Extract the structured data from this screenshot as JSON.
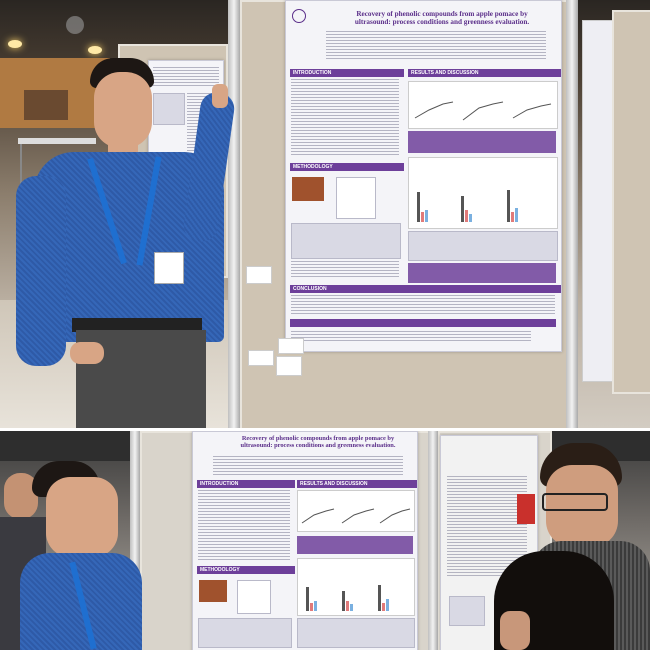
{
  "photo_top": {
    "poster": {
      "title_line1": "Recovery of phenolic compounds from apple pomace by",
      "title_line2": "ultrasound: process conditions and greenness evaluation.",
      "sections": {
        "introduction": "INTRODUCTION",
        "results": "RESULTS AND DISCUSSION",
        "methodology": "METHODOLOGY",
        "conclusion": "CONCLUSION"
      }
    },
    "colors": {
      "poster_accent": "#6d3f9a",
      "lanyard": "#1f6fd0"
    }
  },
  "photo_bottom": {
    "poster": {
      "title_line1": "Recovery of phenolic compounds from apple pomace by",
      "title_line2": "ultrasound: process conditions and greenness evaluation.",
      "sections": {
        "introduction": "INTRODUCTION",
        "results": "RESULTS AND DISCUSSION",
        "methodology": "METHODOLOGY"
      }
    }
  }
}
